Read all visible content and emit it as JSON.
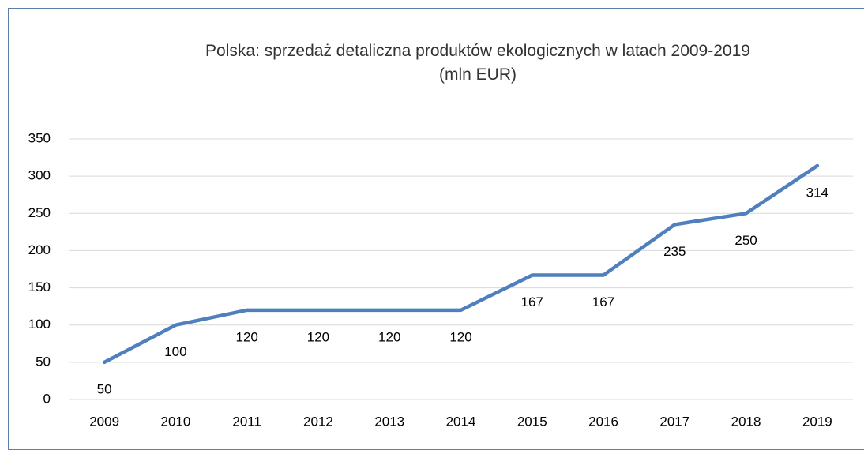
{
  "chart_data": {
    "type": "line",
    "title": "Polska: sprzedaż detaliczna produktów ekologicznych w latach 2009-2019",
    "subtitle": "(mln EUR)",
    "categories": [
      "2009",
      "2010",
      "2011",
      "2012",
      "2013",
      "2014",
      "2015",
      "2016",
      "2017",
      "2018",
      "2019"
    ],
    "values": [
      50,
      100,
      120,
      120,
      120,
      120,
      167,
      167,
      235,
      250,
      314
    ],
    "color": "#4f7fbd",
    "ylim": [
      0,
      350
    ],
    "yticks": [
      0,
      50,
      100,
      150,
      200,
      250,
      300,
      350
    ],
    "grid": true
  }
}
